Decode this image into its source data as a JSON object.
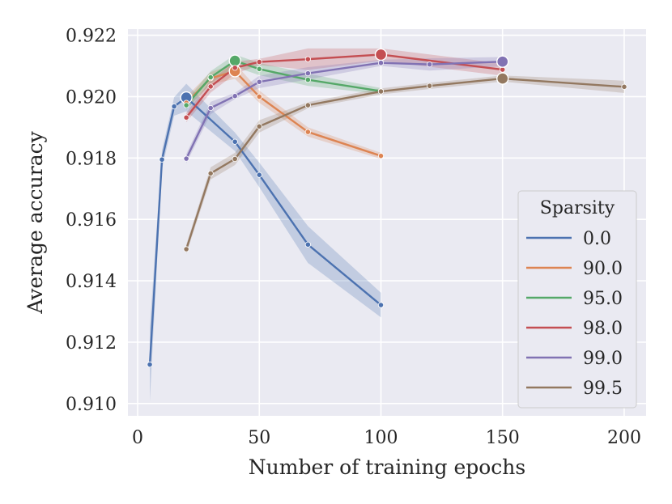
{
  "chart_data": {
    "type": "line",
    "xlabel": "Number of training epochs",
    "ylabel": "Average accuracy",
    "xlim": [
      -4,
      209
    ],
    "ylim": [
      0.9096,
      0.9222
    ],
    "xticks": [
      0,
      50,
      100,
      150,
      200
    ],
    "yticks": [
      0.91,
      0.912,
      0.914,
      0.916,
      0.918,
      0.92,
      0.922
    ],
    "ytick_labels": [
      "0.910",
      "0.912",
      "0.914",
      "0.916",
      "0.918",
      "0.920",
      "0.922"
    ],
    "grid": true,
    "legend": {
      "title": "Sparsity",
      "placement": "lower-right"
    },
    "series": [
      {
        "name": "0.0",
        "color": "#4C72B0",
        "x": [
          5,
          10,
          15,
          20,
          40,
          50,
          70,
          100
        ],
        "y": [
          0.91127,
          0.91795,
          0.91968,
          0.91997,
          0.91853,
          0.91745,
          0.91518,
          0.91321
        ],
        "ci": [
          0.0012,
          0.0003,
          0.0003,
          0.00045,
          0.0003,
          0.0004,
          0.0006,
          0.0004
        ],
        "best_index": 3
      },
      {
        "name": "90.0",
        "color": "#DD8452",
        "x": [
          20,
          30,
          40,
          50,
          70,
          100
        ],
        "y": [
          0.9198,
          0.9206,
          0.92083,
          0.92,
          0.91885,
          0.91807
        ],
        "ci": [
          0.0002,
          0.0002,
          0.00025,
          0.0002,
          0.00015,
          0.0001
        ],
        "best_index": 2
      },
      {
        "name": "95.0",
        "color": "#55A868",
        "x": [
          20,
          30,
          40,
          50,
          70,
          100
        ],
        "y": [
          0.91972,
          0.92063,
          0.92117,
          0.9209,
          0.92055,
          0.92018
        ],
        "ci": [
          0.00015,
          0.0002,
          0.0002,
          0.0002,
          0.0002,
          0.0001
        ],
        "best_index": 2
      },
      {
        "name": "98.0",
        "color": "#C44E52",
        "x": [
          20,
          30,
          40,
          50,
          70,
          100,
          150
        ],
        "y": [
          0.91932,
          0.92033,
          0.92094,
          0.92113,
          0.92122,
          0.92137,
          0.92088
        ],
        "ci": [
          0.00015,
          0.0002,
          0.0002,
          0.0001,
          0.00035,
          0.0002,
          0.0002
        ],
        "best_index": 5
      },
      {
        "name": "99.0",
        "color": "#8172B3",
        "x": [
          20,
          30,
          40,
          50,
          70,
          100,
          120,
          150
        ],
        "y": [
          0.91798,
          0.91963,
          0.92002,
          0.92048,
          0.92076,
          0.9211,
          0.92105,
          0.92114
        ],
        "ci": [
          0.00015,
          0.0002,
          0.0001,
          0.0002,
          0.0002,
          0.0001,
          0.0002,
          0.00015
        ],
        "best_index": 7
      },
      {
        "name": "99.5",
        "color": "#937860",
        "x": [
          20,
          30,
          40,
          50,
          70,
          100,
          120,
          150,
          200
        ],
        "y": [
          0.91503,
          0.9175,
          0.91797,
          0.91903,
          0.91972,
          0.92017,
          0.92035,
          0.92059,
          0.92032
        ],
        "ci": [
          0.00015,
          0.0002,
          0.0002,
          0.0002,
          0.0001,
          0.0001,
          0.0001,
          0.0001,
          0.0002
        ],
        "best_index": 7
      }
    ]
  }
}
